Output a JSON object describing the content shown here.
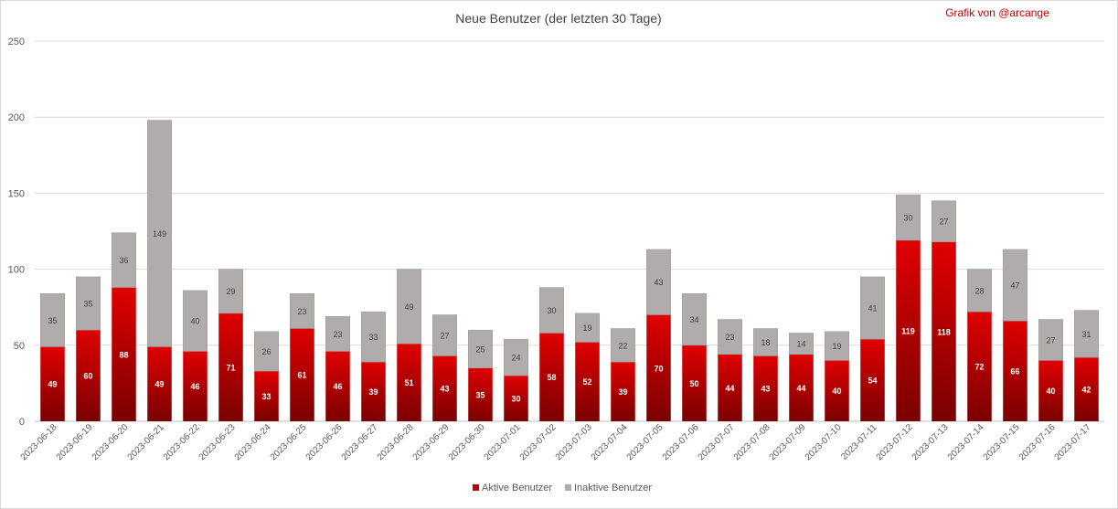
{
  "chart_data": {
    "type": "bar",
    "stacked": true,
    "title": "Neue Benutzer (der letzten 30 Tage)",
    "credit": "Grafik von @arcange",
    "categories": [
      "2023-06-18",
      "2023-06-19",
      "2023-06-20",
      "2023-06-21",
      "2023-06-22",
      "2023-06-23",
      "2023-06-24",
      "2023-06-25",
      "2023-06-26",
      "2023-06-27",
      "2023-06-28",
      "2023-06-29",
      "2023-06-30",
      "2023-07-01",
      "2023-07-02",
      "2023-07-03",
      "2023-07-04",
      "2023-07-05",
      "2023-07-06",
      "2023-07-07",
      "2023-07-08",
      "2023-07-09",
      "2023-07-10",
      "2023-07-11",
      "2023-07-12",
      "2023-07-13",
      "2023-07-14",
      "2023-07-15",
      "2023-07-16",
      "2023-07-17"
    ],
    "series": [
      {
        "name": "Aktive Benutzer",
        "color": "#c00000",
        "values": [
          49,
          60,
          88,
          49,
          46,
          71,
          33,
          61,
          46,
          39,
          51,
          43,
          35,
          30,
          58,
          52,
          39,
          70,
          50,
          44,
          43,
          44,
          40,
          54,
          119,
          118,
          72,
          66,
          40,
          42
        ]
      },
      {
        "name": "Inaktive Benutzer",
        "color": "#b0acac",
        "values": [
          35,
          35,
          36,
          149,
          40,
          29,
          26,
          23,
          23,
          33,
          49,
          27,
          25,
          24,
          30,
          19,
          22,
          43,
          34,
          23,
          18,
          14,
          19,
          41,
          30,
          27,
          28,
          47,
          27,
          31
        ]
      }
    ],
    "ylim": [
      0,
      250
    ],
    "yticks": [
      "0",
      "50",
      "100",
      "150",
      "200",
      "250"
    ],
    "grid": true,
    "legend": "bottom",
    "xlabel": "",
    "ylabel": ""
  }
}
